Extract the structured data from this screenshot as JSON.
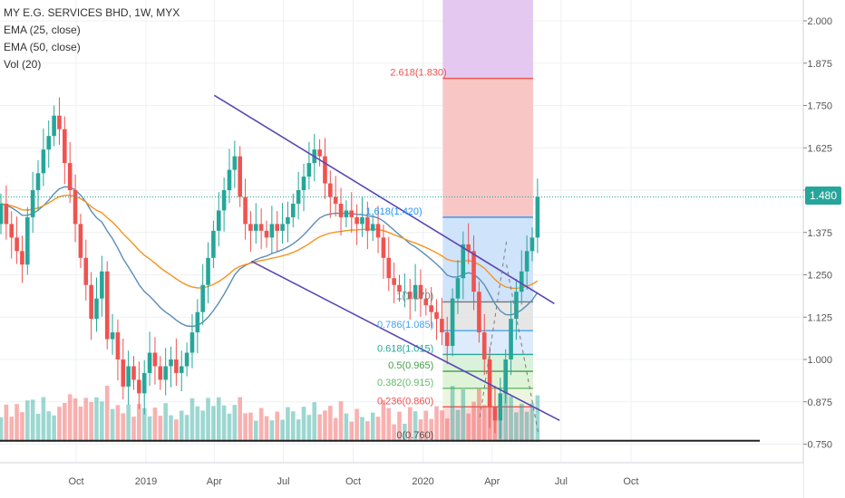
{
  "legend": {
    "title": "MY E.G. SERVICES BHD, 1W, MYX",
    "ema25": "EMA (25, close)",
    "ema50": "EMA (50, close)",
    "vol": "Vol (20)"
  },
  "last_price": "1.480",
  "colors": {
    "up": "#26a69a",
    "down": "#ef5350",
    "ema25": "#f7931e",
    "ema50": "#5b8db8",
    "channel": "#5b46b5",
    "last_price_line": "#26a69a",
    "fib_extension_zone": "#f9c6c6",
    "fib_ext_top_zone": "#e4c8ef",
    "fib_blue_zone": "#cfe3fb"
  },
  "chart_data": {
    "type": "candlestick",
    "title": "MY E.G. SERVICES BHD, 1W, MYX",
    "ylim": [
      0.7,
      2.05
    ],
    "y_ticks": [
      "2.000",
      "1.875",
      "1.750",
      "1.625",
      "1.500",
      "1.375",
      "1.250",
      "1.125",
      "1.000",
      "0.875",
      "0.750"
    ],
    "x_tick_labels": [
      "Oct",
      "2019",
      "Apr",
      "Jul",
      "Oct",
      "2020",
      "Apr",
      "Jul",
      "Oct"
    ],
    "x_tick_dates": [
      "2018-10-01",
      "2019-01-01",
      "2019-04-01",
      "2019-07-01",
      "2019-10-01",
      "2020-01-01",
      "2020-04-01",
      "2020-07-01",
      "2020-10-01"
    ],
    "series": [
      {
        "name": "EMA (25, close)"
      },
      {
        "name": "EMA (50, close)"
      },
      {
        "name": "Vol (20)"
      }
    ],
    "closes": [
      1.46,
      1.4,
      1.36,
      1.32,
      1.28,
      1.42,
      1.5,
      1.55,
      1.62,
      1.66,
      1.72,
      1.68,
      1.58,
      1.5,
      1.4,
      1.3,
      1.22,
      1.12,
      1.18,
      1.26,
      1.06,
      1.08,
      1.0,
      0.92,
      0.98,
      0.94,
      0.9,
      0.96,
      1.02,
      0.98,
      0.94,
      0.98,
      1.0,
      0.96,
      0.98,
      1.02,
      1.08,
      1.14,
      1.22,
      1.3,
      1.38,
      1.44,
      1.5,
      1.56,
      1.6,
      1.48,
      1.4,
      1.38,
      1.4,
      1.38,
      1.36,
      1.4,
      1.38,
      1.4,
      1.42,
      1.46,
      1.5,
      1.54,
      1.58,
      1.62,
      1.6,
      1.52,
      1.48,
      1.46,
      1.42,
      1.44,
      1.42,
      1.4,
      1.42,
      1.38,
      1.4,
      1.36,
      1.3,
      1.24,
      1.22,
      1.2,
      1.2,
      1.18,
      1.22,
      1.18,
      1.16,
      1.14,
      1.12,
      1.08,
      1.04,
      1.18,
      1.24,
      1.34,
      1.32,
      1.2,
      1.08,
      1.0,
      0.86,
      0.82,
      0.9,
      1.0,
      1.12,
      1.2,
      1.26,
      1.32,
      1.36,
      1.48
    ],
    "fib_levels": [
      {
        "ratio": "0",
        "price": 0.76,
        "label": "0(0.760)"
      },
      {
        "ratio": "0.236",
        "price": 0.86,
        "label": "0.236(0.860)"
      },
      {
        "ratio": "0.382",
        "price": 0.915,
        "label": "0.382(0.915)"
      },
      {
        "ratio": "0.5",
        "price": 0.965,
        "label": "0.5(0.965)"
      },
      {
        "ratio": "0.618",
        "price": 1.015,
        "label": "0.618(1.015)"
      },
      {
        "ratio": "0.786",
        "price": 1.085,
        "label": "0.786(1.085)"
      },
      {
        "ratio": "1",
        "price": 1.17,
        "label": "1(1.170)"
      },
      {
        "ratio": "1.618",
        "price": 1.42,
        "label": "1.618(1.420)"
      },
      {
        "ratio": "2.618",
        "price": 1.83,
        "label": "2.618(1.830)"
      }
    ],
    "grid": true,
    "legend_position": "top-left"
  }
}
